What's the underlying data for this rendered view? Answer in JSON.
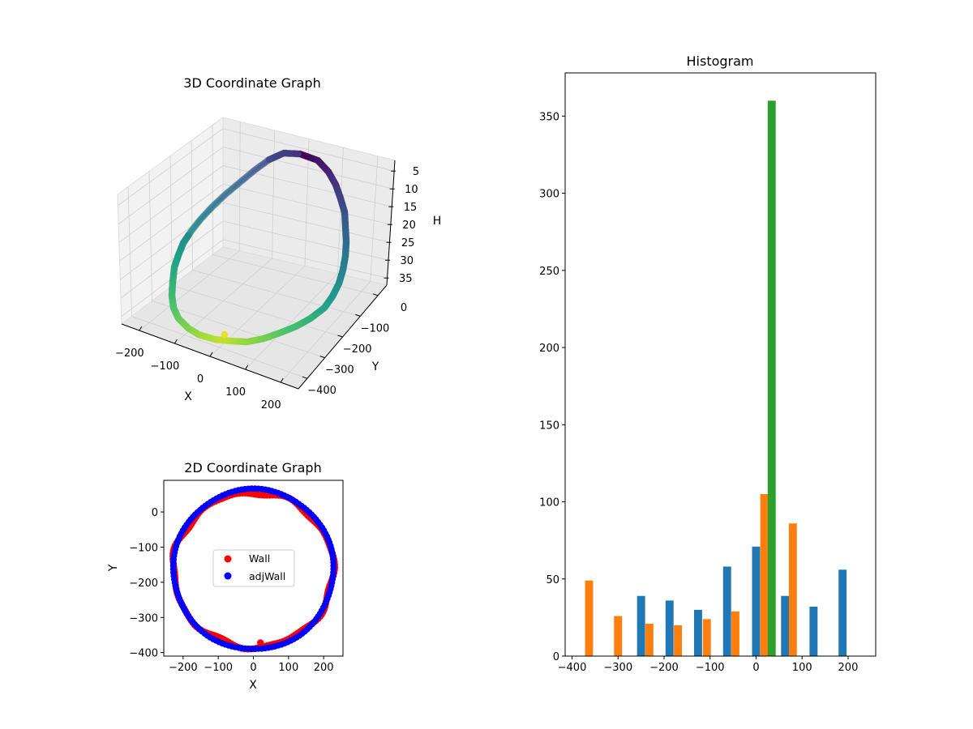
{
  "colors": {
    "blue": "#1f77b4",
    "orange": "#ff7f0e",
    "green": "#2ca02c",
    "wall": "#ff0000",
    "adjwall": "#0000ff"
  },
  "chart_data": [
    {
      "type": "scatter",
      "projection": "3d",
      "title": "3D Coordinate Graph",
      "xlabel": "X",
      "ylabel": "Y",
      "zlabel": "H",
      "x_ticks": [
        -200,
        -100,
        0,
        100,
        200
      ],
      "y_ticks": [
        0,
        -100,
        -200,
        -300,
        -400
      ],
      "z_ticks": [
        5,
        10,
        15,
        20,
        25,
        30,
        35
      ],
      "z_inverted": true,
      "colormap": "viridis",
      "series": [
        {
          "shape": "ring",
          "x_range": [
            -230,
            230
          ],
          "y_range": [
            -390,
            60
          ],
          "h_range": [
            2,
            38
          ]
        }
      ]
    },
    {
      "type": "scatter",
      "title": "2D Coordinate Graph",
      "xlabel": "X",
      "ylabel": "Y",
      "xlim": [
        -255,
        255
      ],
      "ylim": [
        -410,
        90
      ],
      "x_ticks": [
        -200,
        -100,
        0,
        100,
        200
      ],
      "y_ticks": [
        0,
        -100,
        -200,
        -300,
        -400
      ],
      "legend_position": "center",
      "series": [
        {
          "name": "Wall",
          "color": "#ff0000",
          "center": [
            0,
            -165
          ],
          "radius_x": 228,
          "radius_y": 220
        },
        {
          "name": "adjWall",
          "color": "#0000ff",
          "center": [
            0,
            -163
          ],
          "radius_x": 228,
          "radius_y": 228
        }
      ]
    },
    {
      "type": "bar",
      "title": "Histogram",
      "xlim": [
        -415,
        260
      ],
      "ylim": [
        0,
        378
      ],
      "x_ticks": [
        -400,
        -300,
        -200,
        -100,
        0,
        100,
        200
      ],
      "y_ticks": [
        0,
        50,
        100,
        150,
        200,
        250,
        300,
        350
      ],
      "bar_width": 17.5,
      "series": [
        {
          "color": "#1f77b4",
          "x": [
            -250,
            -188,
            -126,
            -63,
            0,
            63,
            125,
            188
          ],
          "values": [
            39,
            36,
            30,
            58,
            71,
            39,
            32,
            56
          ]
        },
        {
          "color": "#ff7f0e",
          "x": [
            -363,
            -300,
            -232,
            -170,
            -107,
            -45,
            18,
            80
          ],
          "values": [
            49,
            26,
            21,
            20,
            24,
            29,
            105,
            86
          ]
        },
        {
          "color": "#2ca02c",
          "x": [
            34
          ],
          "values": [
            360
          ]
        }
      ]
    }
  ]
}
